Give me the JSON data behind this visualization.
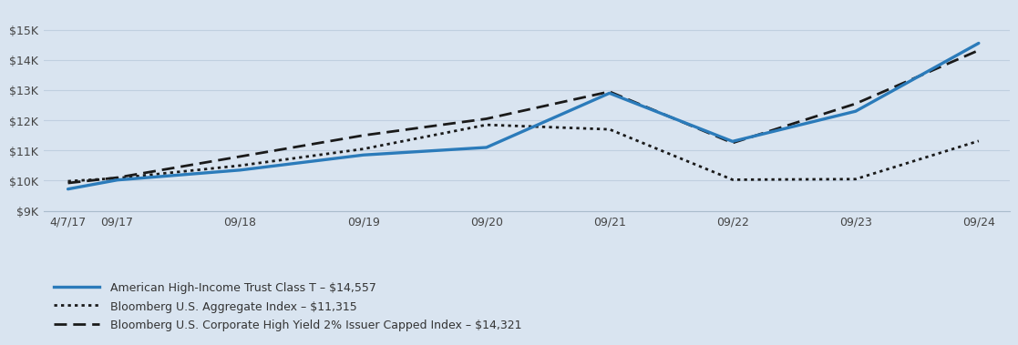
{
  "background_color": "#d9e4f0",
  "plot_bg_color": "#d9e4f0",
  "x_labels": [
    "4/7/17",
    "09/17",
    "09/18",
    "09/19",
    "09/20",
    "09/21",
    "09/22",
    "09/23",
    "09/24"
  ],
  "x_positions": [
    0,
    0.4,
    1.4,
    2.4,
    3.4,
    4.4,
    5.4,
    6.4,
    7.4
  ],
  "series1_label": "American High-Income Trust Class T – $14,557",
  "series1_color": "#2b7bba",
  "series1_x": [
    0,
    0.4,
    1.4,
    2.4,
    3.4,
    4.4,
    5.4,
    6.4,
    7.4
  ],
  "series1_y": [
    9720,
    10020,
    10350,
    10850,
    11100,
    12900,
    11300,
    12300,
    14557
  ],
  "series2_label": "Bloomberg U.S. Aggregate Index – $11,315",
  "series2_color": "#1a1a1a",
  "series2_x": [
    0,
    0.4,
    1.4,
    2.4,
    3.4,
    4.4,
    5.4,
    6.4,
    7.4
  ],
  "series2_y": [
    9980,
    10080,
    10500,
    11050,
    11850,
    11700,
    10030,
    10050,
    11315
  ],
  "series3_label": "Bloomberg U.S. Corporate High Yield 2% Issuer Capped Index – $14,321",
  "series3_color": "#1a1a1a",
  "series3_x": [
    0,
    0.4,
    1.4,
    2.4,
    3.4,
    4.4,
    5.4,
    6.4,
    7.4
  ],
  "series3_y": [
    9920,
    10100,
    10800,
    11500,
    12050,
    12950,
    11250,
    12550,
    14321
  ],
  "ylim": [
    9000,
    15700
  ],
  "yticks": [
    9000,
    10000,
    11000,
    12000,
    13000,
    14000,
    15000
  ],
  "ytick_labels": [
    "$9K",
    "$10K",
    "$11K",
    "$12K",
    "$13K",
    "$14K",
    "$15K"
  ],
  "grid_color": "#c0cfe0",
  "spine_color": "#aabbcc",
  "legend_fontsize": 9,
  "tick_fontsize": 9,
  "series1_linewidth": 2.4,
  "series2_linewidth": 2.0,
  "series3_linewidth": 2.0
}
